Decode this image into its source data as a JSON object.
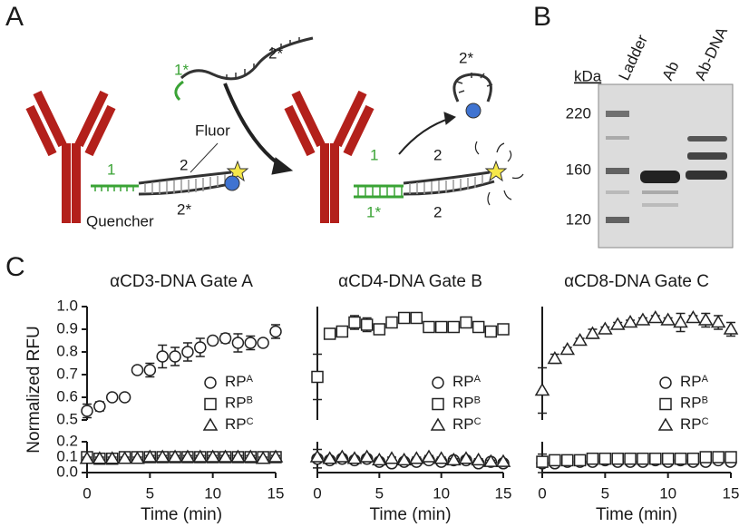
{
  "panels": {
    "a": "A",
    "b": "B",
    "c": "C"
  },
  "diagram": {
    "texts": [
      "1*",
      "2*",
      "1",
      "2",
      "2*",
      "Fluor",
      "Quencher",
      "2*",
      "1",
      "1*",
      "2",
      "2"
    ]
  },
  "gel": {
    "unit": "kDa",
    "markers": [
      220,
      160,
      120
    ],
    "lanes": [
      "Ladder",
      "Ab",
      "Ab-DNA"
    ]
  },
  "chart_data": [
    {
      "type": "scatter",
      "title": "αCD3-DNA Gate A",
      "x_label": "Time (min)",
      "y_label": "Normalized RFU",
      "x": [
        0,
        1,
        2,
        3,
        4,
        5,
        6,
        7,
        8,
        9,
        10,
        11,
        12,
        13,
        14,
        15
      ],
      "xlim": [
        0,
        15
      ],
      "xticks": [
        0,
        5,
        10,
        15
      ],
      "ylim": [
        0,
        1.0
      ],
      "y_break": [
        0.2,
        0.5
      ],
      "yticks": [
        {
          "value": 0,
          "label": "0.0"
        },
        0.1,
        0.2,
        0.5,
        0.6,
        0.7,
        0.8,
        0.9,
        {
          "value": 1,
          "label": "1.0"
        }
      ],
      "legend": "lower right",
      "series": [
        {
          "name": "RP",
          "name_sup": "A",
          "marker": "circle",
          "color": "#222222",
          "values": [
            0.54,
            0.56,
            0.6,
            0.6,
            0.72,
            0.72,
            0.78,
            0.78,
            0.8,
            0.82,
            0.85,
            0.86,
            0.84,
            0.84,
            0.84,
            0.89
          ],
          "errors": [
            0.03,
            0.02,
            0.01,
            0.01,
            0.01,
            0.03,
            0.05,
            0.04,
            0.04,
            0.04,
            0.01,
            0.02,
            0.04,
            0.03,
            0.01,
            0.03
          ]
        },
        {
          "name": "RP",
          "name_sup": "B",
          "marker": "square",
          "color": "#222222",
          "values": [
            0.1,
            0.09,
            0.09,
            0.1,
            0.1,
            0.1,
            0.1,
            0.1,
            0.1,
            0.1,
            0.1,
            0.1,
            0.1,
            0.1,
            0.1,
            0.1
          ],
          "errors": [
            0.02,
            0.01,
            0.01,
            0.01,
            0.01,
            0.01,
            0.01,
            0.01,
            0.01,
            0.01,
            0.01,
            0.01,
            0.01,
            0.01,
            0.01,
            0.01
          ]
        },
        {
          "name": "RP",
          "name_sup": "C",
          "marker": "triangle",
          "color": "#222222",
          "values": [
            0.09,
            0.09,
            0.09,
            0.09,
            0.09,
            0.1,
            0.1,
            0.1,
            0.1,
            0.1,
            0.1,
            0.1,
            0.1,
            0.1,
            0.09,
            0.1
          ],
          "errors": [
            0.01,
            0.01,
            0.01,
            0.01,
            0.01,
            0.01,
            0.01,
            0.01,
            0.01,
            0.01,
            0.01,
            0.01,
            0.01,
            0.01,
            0.01,
            0.01
          ]
        }
      ]
    },
    {
      "type": "scatter",
      "title": "αCD4-DNA Gate B",
      "x_label": "Time (min)",
      "x": [
        0,
        1,
        2,
        3,
        4,
        5,
        6,
        7,
        8,
        9,
        10,
        11,
        12,
        13,
        14,
        15
      ],
      "xlim": [
        0,
        15
      ],
      "xticks": [
        0,
        5,
        10,
        15
      ],
      "ylim": [
        0,
        1.0
      ],
      "y_break": [
        0.2,
        0.5
      ],
      "legend": "lower right",
      "series": [
        {
          "name": "RP",
          "name_sup": "A",
          "marker": "circle",
          "color": "#222222",
          "values": [
            0.09,
            0.08,
            0.09,
            0.08,
            0.09,
            0.07,
            0.06,
            0.07,
            0.07,
            0.08,
            0.07,
            0.08,
            0.08,
            0.06,
            0.07,
            0.06
          ],
          "errors": [
            0.06,
            0.01,
            0.01,
            0.01,
            0.01,
            0.01,
            0.01,
            0.01,
            0.01,
            0.01,
            0.01,
            0.01,
            0.01,
            0.01,
            0.01,
            0.01
          ]
        },
        {
          "name": "RP",
          "name_sup": "B",
          "marker": "square",
          "color": "#222222",
          "values": [
            0.69,
            0.88,
            0.89,
            0.93,
            0.92,
            0.9,
            0.93,
            0.95,
            0.95,
            0.91,
            0.91,
            0.91,
            0.93,
            0.91,
            0.89,
            0.9
          ],
          "errors": [
            0.1,
            0.02,
            0.01,
            0.03,
            0.03,
            0.01,
            0.01,
            0.01,
            0.01,
            0.01,
            0.01,
            0.01,
            0.02,
            0.01,
            0.01,
            0.02
          ]
        },
        {
          "name": "RP",
          "name_sup": "C",
          "marker": "triangle",
          "color": "#222222",
          "values": [
            0.1,
            0.09,
            0.1,
            0.09,
            0.1,
            0.08,
            0.09,
            0.08,
            0.09,
            0.1,
            0.09,
            0.08,
            0.09,
            0.08,
            0.07,
            0.07
          ],
          "errors": [
            0.01,
            0.01,
            0.01,
            0.01,
            0.01,
            0.01,
            0.01,
            0.01,
            0.01,
            0.01,
            0.01,
            0.01,
            0.01,
            0.01,
            0.01,
            0.01
          ]
        }
      ]
    },
    {
      "type": "scatter",
      "title": "αCD8-DNA Gate C",
      "x_label": "Time (min)",
      "x": [
        0,
        1,
        2,
        3,
        4,
        5,
        6,
        7,
        8,
        9,
        10,
        11,
        12,
        13,
        14,
        15
      ],
      "xlim": [
        0,
        15
      ],
      "xticks": [
        0,
        5,
        10,
        15
      ],
      "ylim": [
        0,
        1.0
      ],
      "y_break": [
        0.2,
        0.5
      ],
      "legend": "lower right",
      "series": [
        {
          "name": "RP",
          "name_sup": "A",
          "marker": "circle",
          "color": "#222222",
          "values": [
            0.06,
            0.06,
            0.07,
            0.07,
            0.07,
            0.08,
            0.07,
            0.07,
            0.07,
            0.08,
            0.07,
            0.08,
            0.07,
            0.07,
            0.08,
            0.07
          ],
          "errors": [
            0.06,
            0.01,
            0.01,
            0.01,
            0.01,
            0.01,
            0.01,
            0.01,
            0.01,
            0.01,
            0.01,
            0.01,
            0.01,
            0.01,
            0.01,
            0.01
          ]
        },
        {
          "name": "RP",
          "name_sup": "B",
          "marker": "square",
          "color": "#222222",
          "values": [
            0.07,
            0.08,
            0.08,
            0.08,
            0.09,
            0.09,
            0.09,
            0.09,
            0.09,
            0.09,
            0.09,
            0.09,
            0.09,
            0.1,
            0.1,
            0.1
          ],
          "errors": [
            0.01,
            0.01,
            0.01,
            0.01,
            0.01,
            0.01,
            0.01,
            0.01,
            0.01,
            0.01,
            0.01,
            0.01,
            0.01,
            0.01,
            0.01,
            0.01
          ]
        },
        {
          "name": "RP",
          "name_sup": "C",
          "marker": "triangle",
          "color": "#222222",
          "values": [
            0.63,
            0.77,
            0.81,
            0.85,
            0.88,
            0.9,
            0.92,
            0.93,
            0.94,
            0.95,
            0.94,
            0.93,
            0.95,
            0.94,
            0.93,
            0.9
          ],
          "errors": [
            0.1,
            0.02,
            0.01,
            0.01,
            0.02,
            0.01,
            0.01,
            0.01,
            0.01,
            0.01,
            0.01,
            0.04,
            0.01,
            0.03,
            0.03,
            0.03
          ]
        }
      ]
    }
  ]
}
